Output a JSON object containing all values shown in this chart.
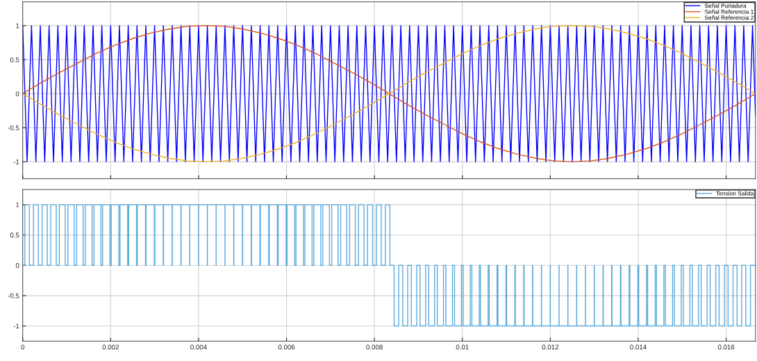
{
  "chart_data": [
    {
      "type": "line",
      "xlim": [
        0,
        0.016667
      ],
      "ylim": [
        -1.25,
        1.35
      ],
      "xticks": [
        0,
        0.002,
        0.004,
        0.006,
        0.008,
        0.01,
        0.012,
        0.014,
        0.016
      ],
      "yticks": [
        -1,
        -0.5,
        0,
        0.5,
        1
      ],
      "grid": true,
      "legend": "top right",
      "tick_labels": "y",
      "series": [
        {
          "name": "Señal Portadora",
          "color": "#0000ff",
          "x": [
            0,
            0.0001,
            0.0002,
            0.0003,
            0.0004,
            0.0005,
            0.0006,
            0.0007,
            0.0008,
            0.0009,
            0.001,
            0.0011,
            0.0012,
            0.0013,
            0.0014,
            0.0015,
            0.0016,
            0.0017,
            0.0018,
            0.0019,
            0.002,
            0.0021,
            0.0022,
            0.0023,
            0.0024,
            0.0025,
            0.0026,
            0.0027,
            0.0028,
            0.0029,
            0.003,
            0.0031,
            0.0032,
            0.0033,
            0.0034,
            0.0035,
            0.0036,
            0.0037,
            0.0038,
            0.0039,
            0.004,
            0.0041,
            0.0042,
            0.0043,
            0.0044,
            0.0045,
            0.0046,
            0.0047,
            0.0048,
            0.0049,
            0.005,
            0.0051,
            0.0052,
            0.0053,
            0.0054,
            0.0055,
            0.0056,
            0.0057,
            0.0058,
            0.0059,
            0.006,
            0.0061,
            0.0062,
            0.0063,
            0.0064,
            0.0065,
            0.0066,
            0.0067,
            0.0068,
            0.0069,
            0.007,
            0.0071,
            0.0072,
            0.0073,
            0.0074,
            0.0075,
            0.0076,
            0.0077,
            0.0078,
            0.0079,
            0.008,
            0.0081,
            0.0082,
            0.0083,
            0.0084,
            0.0085,
            0.0086,
            0.0087,
            0.0088,
            0.0089,
            0.009,
            0.0091,
            0.0092,
            0.0093,
            0.0094,
            0.0095,
            0.0096,
            0.0097,
            0.0098,
            0.0099,
            0.01,
            0.0101,
            0.0102,
            0.0103,
            0.0104,
            0.0105,
            0.0106,
            0.0107,
            0.0108,
            0.0109,
            0.011,
            0.0111,
            0.0112,
            0.0113,
            0.0114,
            0.0115,
            0.0116,
            0.0117,
            0.0118,
            0.0119,
            0.012,
            0.0121,
            0.0122,
            0.0123,
            0.0124,
            0.0125,
            0.0126,
            0.0127,
            0.0128,
            0.0129,
            0.013,
            0.0131,
            0.0132,
            0.0133,
            0.0134,
            0.0135,
            0.0136,
            0.0137,
            0.0138,
            0.0139,
            0.014,
            0.0141,
            0.0142,
            0.0143,
            0.0144,
            0.0145,
            0.0146,
            0.0147,
            0.0148,
            0.0149,
            0.015,
            0.0151,
            0.0152,
            0.0153,
            0.0154,
            0.0155,
            0.0156,
            0.0157,
            0.0158,
            0.0159,
            0.016,
            0.0161,
            0.0162,
            0.0163,
            0.0164,
            0.0165,
            0.0166,
            0.016667
          ],
          "values": [
            1,
            -1,
            1,
            -1,
            1,
            -1,
            1,
            -1,
            1,
            -1,
            1,
            -1,
            1,
            -1,
            1,
            -1,
            1,
            -1,
            1,
            -1,
            1,
            -1,
            1,
            -1,
            1,
            -1,
            1,
            -1,
            1,
            -1,
            1,
            -1,
            1,
            -1,
            1,
            -1,
            1,
            -1,
            1,
            -1,
            1,
            -1,
            1,
            -1,
            1,
            -1,
            1,
            -1,
            1,
            -1,
            1,
            -1,
            1,
            -1,
            1,
            -1,
            1,
            -1,
            1,
            -1,
            1,
            -1,
            1,
            -1,
            1,
            -1,
            1,
            -1,
            1,
            -1,
            1,
            -1,
            1,
            -1,
            1,
            -1,
            1,
            -1,
            1,
            -1,
            1,
            -1,
            1,
            -1,
            1,
            -1,
            1,
            -1,
            1,
            -1,
            1,
            -1,
            1,
            -1,
            1,
            -1,
            1,
            -1,
            1,
            -1,
            1,
            -1,
            1,
            -1,
            1,
            -1,
            1,
            -1,
            1,
            -1,
            1,
            -1,
            1,
            -1,
            1,
            -1,
            1,
            -1,
            1,
            -1,
            1,
            -1,
            1,
            -1,
            1,
            -1,
            1,
            -1,
            1,
            -1,
            1,
            -1,
            1,
            -1,
            1,
            -1,
            1,
            -1,
            1,
            -1,
            1,
            -1,
            1,
            -1,
            1,
            -1,
            1,
            -1,
            1,
            -1,
            1,
            -1,
            1,
            -1,
            1,
            -1,
            1,
            -1,
            1,
            -1,
            1,
            -1,
            1,
            -1,
            1,
            -1,
            1,
            -0.33
          ]
        },
        {
          "name": "Señal Referencia 1",
          "color": "#d95319",
          "x": [
            0,
            0.000417,
            0.000833,
            0.00125,
            0.001667,
            0.002083,
            0.0025,
            0.002917,
            0.003333,
            0.00375,
            0.004167,
            0.004583,
            0.005,
            0.005417,
            0.005833,
            0.00625,
            0.006667,
            0.007083,
            0.0075,
            0.007917,
            0.008333,
            0.00875,
            0.009167,
            0.009583,
            0.01,
            0.010417,
            0.010833,
            0.01125,
            0.011667,
            0.012083,
            0.0125,
            0.012917,
            0.013333,
            0.01375,
            0.014167,
            0.014583,
            0.015,
            0.015417,
            0.015833,
            0.01625,
            0.016667
          ],
          "values": [
            0,
            0.16,
            0.31,
            0.45,
            0.59,
            0.71,
            0.81,
            0.89,
            0.95,
            0.99,
            1,
            0.99,
            0.95,
            0.89,
            0.81,
            0.71,
            0.59,
            0.45,
            0.31,
            0.16,
            0,
            -0.16,
            -0.31,
            -0.45,
            -0.59,
            -0.71,
            -0.81,
            -0.89,
            -0.95,
            -0.99,
            -1,
            -0.99,
            -0.95,
            -0.89,
            -0.81,
            -0.71,
            -0.59,
            -0.45,
            -0.31,
            -0.16,
            0
          ]
        },
        {
          "name": "Señal Referencia 2",
          "color": "#edb120",
          "x": [
            0,
            0.000417,
            0.000833,
            0.00125,
            0.001667,
            0.002083,
            0.0025,
            0.002917,
            0.003333,
            0.00375,
            0.004167,
            0.004583,
            0.005,
            0.005417,
            0.005833,
            0.00625,
            0.006667,
            0.007083,
            0.0075,
            0.007917,
            0.008333,
            0.00875,
            0.009167,
            0.009583,
            0.01,
            0.010417,
            0.010833,
            0.01125,
            0.011667,
            0.012083,
            0.0125,
            0.012917,
            0.013333,
            0.01375,
            0.014167,
            0.014583,
            0.015,
            0.015417,
            0.015833,
            0.01625,
            0.016667
          ],
          "values": [
            0,
            -0.16,
            -0.31,
            -0.45,
            -0.59,
            -0.71,
            -0.81,
            -0.89,
            -0.95,
            -0.99,
            -1,
            -0.99,
            -0.95,
            -0.89,
            -0.81,
            -0.71,
            -0.59,
            -0.45,
            -0.31,
            -0.16,
            0,
            0.16,
            0.31,
            0.45,
            0.59,
            0.71,
            0.81,
            0.89,
            0.95,
            0.99,
            1,
            0.99,
            0.95,
            0.89,
            0.81,
            0.71,
            0.59,
            0.45,
            0.31,
            0.16,
            0
          ]
        }
      ]
    },
    {
      "type": "step",
      "xlim": [
        0,
        0.016667
      ],
      "ylim": [
        -1.25,
        1.25
      ],
      "xticks": [
        0,
        0.002,
        0.004,
        0.006,
        0.008,
        0.01,
        0.012,
        0.014,
        0.016
      ],
      "yticks": [
        -1,
        -0.5,
        0,
        0.5,
        1
      ],
      "grid": true,
      "legend": "top right",
      "series": [
        {
          "name": "Tension Salida",
          "color": "#5aaadd",
          "x": [
            0,
            4.8e-05,
            0.000152,
            0.000244,
            0.000356,
            0.000441,
            0.000559,
            0.000637,
            0.000763,
            0.000833,
            0.000967,
            0.00103,
            0.00117,
            0.001227,
            0.001374,
            0.001423,
            0.001577,
            0.00162,
            0.00178,
            0.001817,
            0.001983,
            0.002014,
            0.002186,
            0.002212,
            0.002388,
            0.00241,
            0.00259,
            0.002607,
            0.002793,
            0.002806,
            0.002994,
            0.003004,
            0.003196,
            0.003203,
            0.003397,
            0.003402,
            0.003598,
            0.003601,
            0.003799,
            0.003801,
            0.003999,
            0.004001,
            0.004199,
            0.004201,
            0.004399,
            0.0044,
            0.0046,
            0.004601,
            0.004799,
            0.004802,
            0.004998,
            0.005003,
            0.005197,
            0.005205,
            0.005395,
            0.005406,
            0.005594,
            0.005608,
            0.005792,
            0.00581,
            0.00599,
            0.006013,
            0.006187,
            0.006215,
            0.006385,
            0.006418,
            0.006582,
            0.006621,
            0.006779,
            0.006824,
            0.006976,
            0.007028,
            0.007172,
            0.007231,
            0.007369,
            0.007435,
            0.007565,
            0.007638,
            0.007762,
            0.007842,
            0.007958,
            0.008046,
            0.008154,
            0.008249,
            0.008351,
            0.008447,
            0.008553,
            0.008643,
            0.008757,
            0.008839,
            0.008961,
            0.009036,
            0.009164,
            0.009232,
            0.009368,
            0.009429,
            0.009571,
            0.009625,
            0.009775,
            0.009822,
            0.009978,
            0.010019,
            0.010181,
            0.010216,
            0.010384,
            0.010414,
            0.010586,
            0.010611,
            0.010789,
            0.010809,
            0.010991,
            0.011007,
            0.011193,
            0.011205,
            0.011395,
            0.011404,
            0.011596,
            0.011602,
            0.011798,
            0.011801,
            0.011999,
            0.012001,
            0.012199,
            0.012201,
            0.012399,
            0.012401,
            0.012599,
            0.012601,
            0.012799,
            0.012801,
            0.012999,
            0.013002,
            0.013198,
            0.013204,
            0.013396,
            0.013405,
            0.013595,
            0.013607,
            0.013793,
            0.013809,
            0.013991,
            0.014011,
            0.014189,
            0.014214,
            0.014386,
            0.014416,
            0.014584,
            0.014619,
            0.014781,
            0.014822,
            0.014978,
            0.015025,
            0.015175,
            0.015229,
            0.015371,
            0.015432,
            0.015568,
            0.015636,
            0.015764,
            0.015839,
            0.015961,
            0.016043,
            0.016157,
            0.016247,
            0.016353,
            0.016447,
            0.016553,
            0.016667
          ],
          "values": [
            0,
            1,
            0,
            1,
            0,
            1,
            0,
            1,
            0,
            1,
            0,
            1,
            0,
            1,
            0,
            1,
            0,
            1,
            0,
            1,
            0,
            1,
            0,
            1,
            0,
            1,
            0,
            1,
            0,
            1,
            0,
            1,
            0,
            1,
            0,
            1,
            0,
            1,
            0,
            1,
            0,
            1,
            0,
            1,
            0,
            1,
            0,
            1,
            0,
            1,
            0,
            1,
            0,
            1,
            0,
            1,
            0,
            1,
            0,
            1,
            0,
            1,
            0,
            1,
            0,
            1,
            0,
            1,
            0,
            1,
            0,
            1,
            0,
            1,
            0,
            1,
            0,
            1,
            0,
            1,
            0,
            1,
            0,
            1,
            0,
            -1,
            0,
            -1,
            0,
            -1,
            0,
            -1,
            0,
            -1,
            0,
            -1,
            0,
            -1,
            0,
            -1,
            0,
            -1,
            0,
            -1,
            0,
            -1,
            0,
            -1,
            0,
            -1,
            0,
            -1,
            0,
            -1,
            0,
            -1,
            0,
            -1,
            0,
            -1,
            0,
            -1,
            0,
            -1,
            0,
            -1,
            0,
            -1,
            0,
            -1,
            0,
            -1,
            0,
            -1,
            0,
            -1,
            0,
            -1,
            0,
            -1,
            0,
            -1,
            0,
            -1,
            0,
            -1,
            0,
            -1,
            0,
            -1,
            0,
            -1,
            0,
            -1,
            0,
            -1,
            0,
            -1,
            0,
            -1,
            0,
            -1,
            0,
            -1,
            0,
            -1,
            0,
            0
          ]
        }
      ]
    }
  ]
}
